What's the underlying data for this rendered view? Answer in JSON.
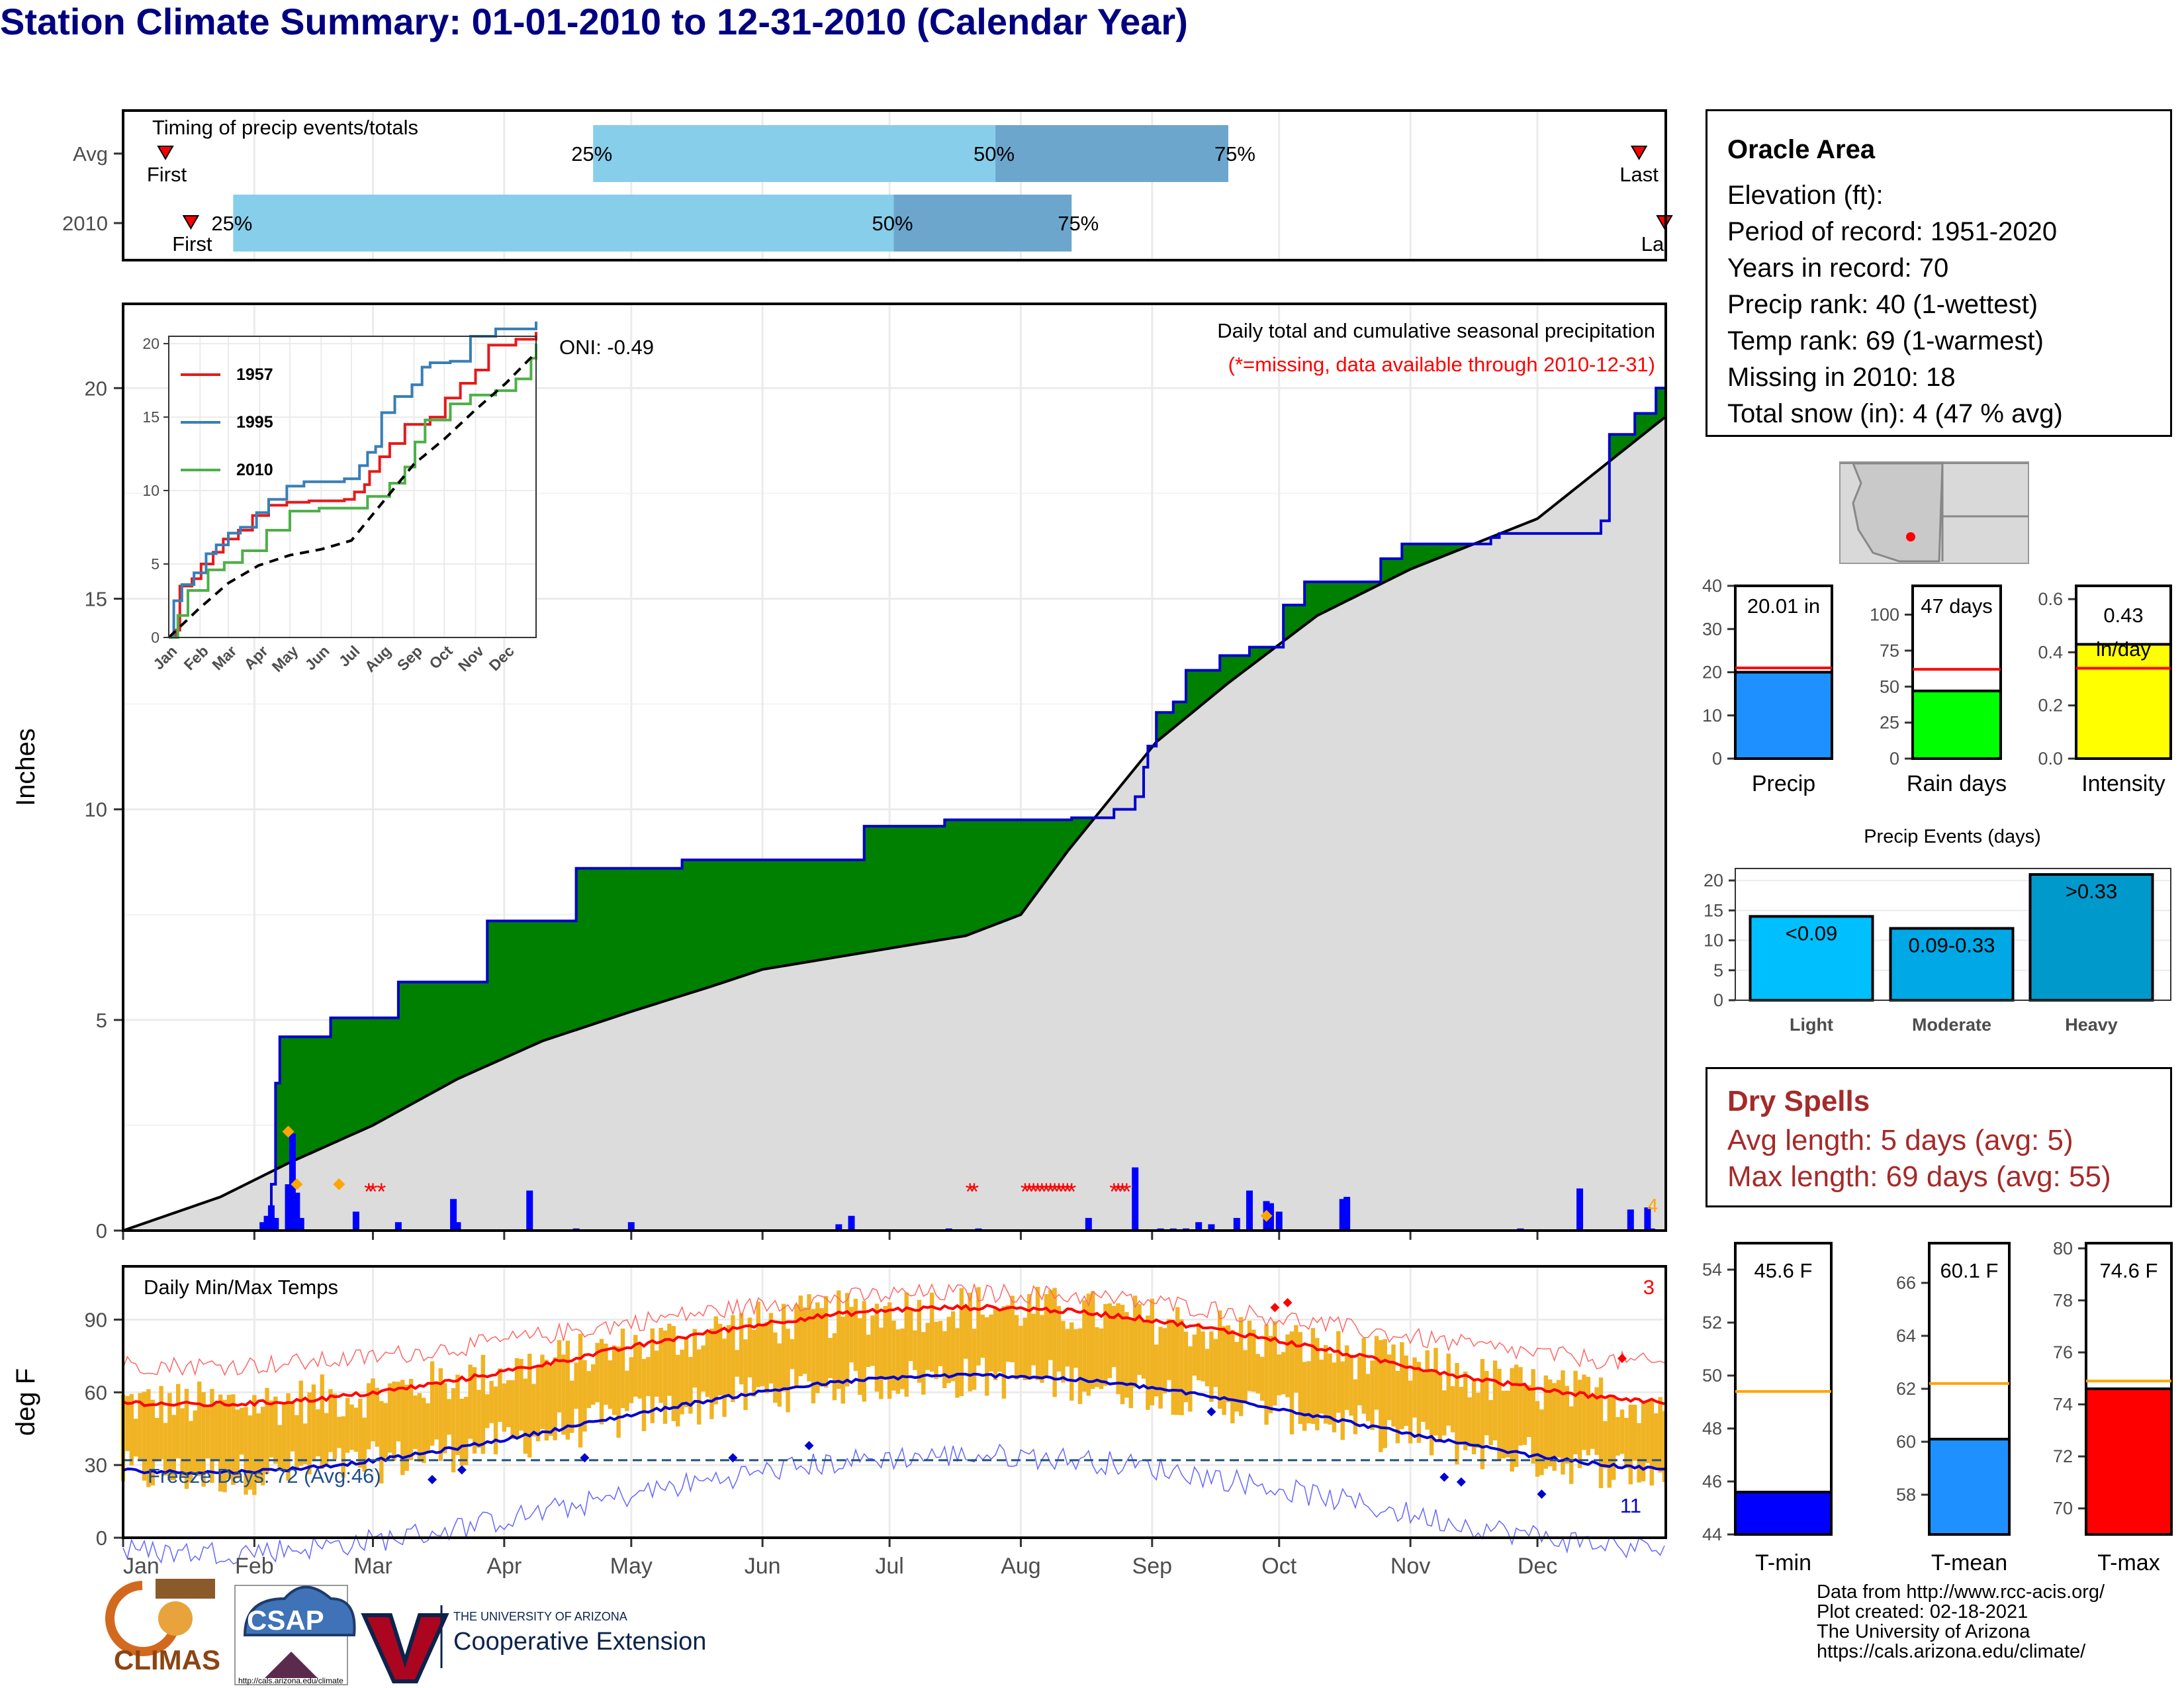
{
  "title": "Station Climate Summary: 01-01-2010 to 12-31-2010 (Calendar Year)",
  "timing": {
    "label": "Timing of precip events/totals",
    "rows": [
      {
        "name": "Avg",
        "first_label": "First",
        "last_label": "Last",
        "first_day": 11,
        "last_day": 359,
        "p25_day": 112,
        "p50_day": 207,
        "p75_day": 262,
        "p25_label": "25%",
        "p50_label": "50%",
        "p75_label": "75%"
      },
      {
        "name": "2010",
        "first_label": "First",
        "last_label": "La",
        "first_day": 17,
        "last_day": 365,
        "p25_day": 27,
        "p50_day": 183,
        "p75_day": 225,
        "p25_label": "25%",
        "p50_label": "50%",
        "p75_label": "75%"
      }
    ]
  },
  "precip": {
    "oni": "ONI: -0.49",
    "header": "Daily total and cumulative seasonal precipitation",
    "missing_note": "(*=missing, data available through 2010-12-31)",
    "ylabel": "Inches",
    "yticks": [
      "0",
      "5",
      "10",
      "15",
      "20"
    ],
    "ylim": [
      0,
      22
    ],
    "snow_total_label": "4",
    "colors": {
      "above": "#008000",
      "below": "#8B5A1A",
      "avg": "#dcdcdc",
      "bars": "#0000ff",
      "line": "#0000cd"
    }
  },
  "inset": {
    "yticks": [
      "0",
      "5",
      "10",
      "15",
      "20"
    ],
    "xticks": [
      "Jan",
      "Feb",
      "Mar",
      "Apr",
      "May",
      "Jun",
      "Jul",
      "Aug",
      "Sep",
      "Oct",
      "Nov",
      "Dec"
    ],
    "legend": [
      {
        "name": "1957",
        "color": "#e41a1c"
      },
      {
        "name": "1995",
        "color": "#377eb8"
      },
      {
        "name": "2010",
        "color": "#4daf4a"
      }
    ]
  },
  "temps": {
    "label": "Daily Min/Max Temps",
    "ylabel": "deg F",
    "yticks": [
      "0",
      "30",
      "60",
      "90"
    ],
    "ylim": [
      0,
      112
    ],
    "freeze_label": "Freeze Days: 72 (Avg:46)",
    "record_high_count": "3",
    "record_low_count": "11",
    "months": [
      "Jan",
      "Feb",
      "Mar",
      "Apr",
      "May",
      "Jun",
      "Jul",
      "Aug",
      "Sep",
      "Oct",
      "Nov",
      "Dec"
    ]
  },
  "summary_bars": [
    {
      "label": "Precip",
      "value_label": "20.01 in",
      "value": 20.01,
      "avg": 21,
      "ylim": [
        0,
        40
      ],
      "yticks": [
        "0",
        "10",
        "20",
        "30",
        "40"
      ],
      "color": "#1e90ff"
    },
    {
      "label": "Rain days",
      "value_label": "47 days",
      "value": 47,
      "avg": 62,
      "ylim": [
        0,
        120
      ],
      "yticks": [
        "0",
        "25",
        "50",
        "75",
        "100"
      ],
      "color": "#00ff00"
    },
    {
      "label": "Intensity",
      "value_label": "0.43 in/day",
      "value": 0.43,
      "avg": 0.34,
      "ylim": [
        0,
        0.65
      ],
      "yticks": [
        "0.0",
        "0.2",
        "0.4",
        "0.6"
      ],
      "color": "#ffff00"
    }
  ],
  "events": {
    "title": "Precip Events (days)",
    "yticks": [
      "0",
      "5",
      "10",
      "15",
      "20"
    ],
    "categories": [
      "Light",
      "Moderate",
      "Heavy"
    ],
    "bar_labels": [
      "<0.09",
      "0.09-0.33",
      ">0.33"
    ],
    "values": [
      14,
      12,
      21
    ],
    "colors": [
      "#00bfff",
      "#00a8e6",
      "#0099cc"
    ]
  },
  "temp_bars": [
    {
      "label": "T-min",
      "value_label": "45.6 F",
      "value": 45.6,
      "avg": 49.4,
      "ylim": [
        44,
        55
      ],
      "yticks": [
        "44",
        "46",
        "48",
        "50",
        "52",
        "54"
      ],
      "color": "#0000ff"
    },
    {
      "label": "T-mean",
      "value_label": "60.1 F",
      "value": 60.1,
      "avg": 62.2,
      "ylim": [
        56.5,
        67.5
      ],
      "yticks": [
        "58",
        "60",
        "62",
        "64",
        "66"
      ],
      "color": "#1e90ff"
    },
    {
      "label": "T-max",
      "value_label": "74.6 F",
      "value": 74.6,
      "avg": 74.9,
      "ylim": [
        69,
        80.2
      ],
      "yticks": [
        "70",
        "72",
        "74",
        "76",
        "78",
        "80"
      ],
      "color": "#ff0000"
    }
  ],
  "station": {
    "name": "Oracle Area",
    "lines": [
      "Elevation (ft):",
      "Period of record: 1951-2020",
      "Years in record: 70",
      "Precip rank: 40 (1-wettest)",
      "Temp rank: 69 (1-warmest)",
      "Missing in 2010: 18",
      "Total snow (in): 4 (47 % avg)"
    ]
  },
  "dry_spells": {
    "title": "Dry Spells",
    "avg": "Avg length: 5 days (avg: 5)",
    "max": "Max length: 69 days (avg: 55)"
  },
  "logos": {
    "climas": "CLIMAS",
    "csap": "CSAP",
    "csap_url": "http://cals.arizona.edu/climate",
    "ua_line1": "THE UNIVERSITY OF ARIZONA",
    "ua_line2": "Cooperative Extension"
  },
  "credits": [
    "Data from http://www.rcc-acis.org/",
    "Plot created: 02-18-2021",
    "The University of Arizona",
    "https://cals.arizona.edu/climate/"
  ]
}
